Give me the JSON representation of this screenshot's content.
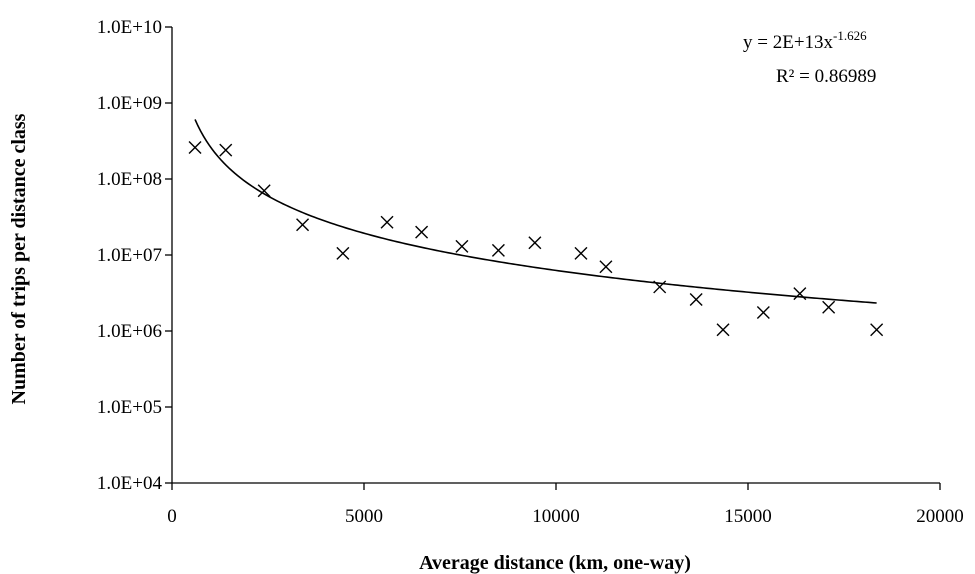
{
  "chart_data": {
    "type": "scatter",
    "title": "",
    "xlabel": "Average distance (km, one-way)",
    "ylabel": "Number of trips per distance class",
    "xlim": [
      0,
      20000
    ],
    "ylim": [
      10000,
      10000000000
    ],
    "yscale": "log",
    "grid": false,
    "legend": "none",
    "x_ticks": [
      "0",
      "5000",
      "10000",
      "15000",
      "20000"
    ],
    "y_ticks": [
      "1.0E+04",
      "1.0E+05",
      "1.0E+06",
      "1.0E+07",
      "1.0E+08",
      "1.0E+09",
      "1.0E+10"
    ],
    "y_tick_values": [
      10000,
      100000,
      1000000,
      10000000,
      100000000,
      1000000000,
      10000000000
    ],
    "x_tick_values": [
      0,
      5000,
      10000,
      15000,
      20000
    ],
    "series": [
      {
        "marker": "x",
        "x": [
          600,
          1400,
          2400,
          3400,
          4450,
          5600,
          6500,
          7550,
          8500,
          9450,
          10650,
          11300,
          12700,
          13650,
          14350,
          15400,
          16350,
          17100,
          18350
        ],
        "y": [
          260000000,
          240000000,
          70000000,
          25000000,
          10500000,
          27000000,
          20000000,
          13000000,
          11500000,
          14500000,
          10500000,
          7000000,
          3800000,
          2600000,
          1040000,
          1750000,
          3100000,
          2050000,
          1040000
        ]
      }
    ],
    "trendline": {
      "type": "power",
      "coefficient": 20000000000000.0,
      "exponent": -1.626,
      "x_start": 600,
      "x_end": 18350,
      "equation_main": "y = 2E+13x",
      "equation_exponent": "-1.626",
      "r_squared_label": "R² = 0.86989"
    }
  }
}
